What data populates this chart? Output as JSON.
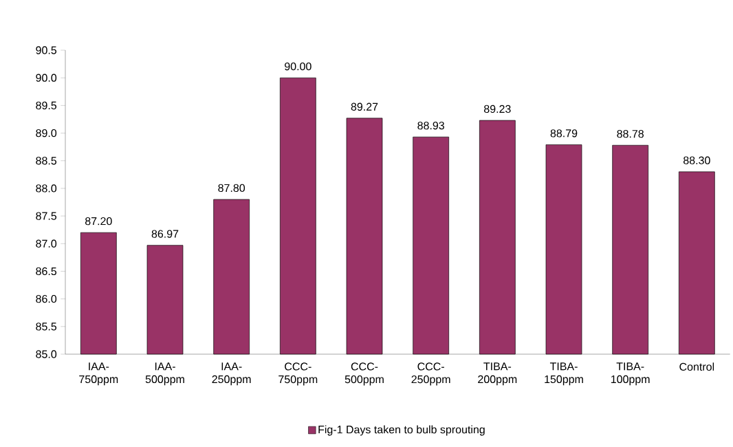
{
  "chart_data": {
    "type": "bar",
    "categories": [
      "IAA-750ppm",
      "IAA-500ppm",
      "IAA-250ppm",
      "CCC-750ppm",
      "CCC-500ppm",
      "CCC-250ppm",
      "TIBA-200ppm",
      "TIBA-150ppm",
      "TIBA-100ppm",
      "Control"
    ],
    "series": [
      {
        "name": "Fig-1 Days taken to bulb sprouting",
        "color": "#993366",
        "values": [
          87.2,
          86.97,
          87.8,
          90.0,
          89.27,
          88.93,
          89.23,
          88.79,
          88.78,
          88.3
        ],
        "value_labels": [
          "87.20",
          "86.97",
          "87.80",
          "90.00",
          "89.27",
          "88.93",
          "89.23",
          "88.79",
          "88.78",
          "88.30"
        ]
      }
    ],
    "ylim": [
      85,
      90.5
    ],
    "yticks": [
      {
        "value": 85,
        "label": "85.0"
      },
      85.5,
      {
        "value": 86,
        "label": "86.0"
      },
      86.5,
      {
        "value": 87,
        "label": "87.0"
      },
      87.5,
      {
        "value": 88,
        "label": "88.0"
      },
      88.5,
      {
        "value": 89,
        "label": "89.0"
      },
      89.5,
      {
        "value": 90,
        "label": "90.0"
      },
      90.5
    ],
    "legend": "bottom"
  }
}
